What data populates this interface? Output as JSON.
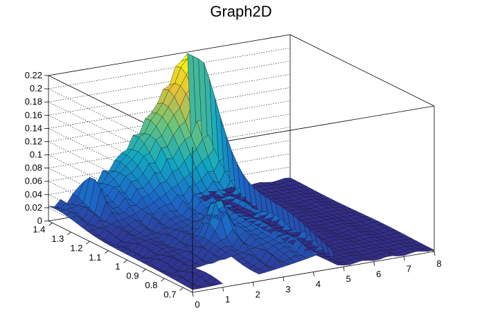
{
  "chart_data": {
    "type": "surface",
    "title": "Graph2D",
    "xlabel": "",
    "ylabel": "",
    "zlabel": "",
    "x_range": [
      0,
      8
    ],
    "y_range": [
      0.65,
      1.42
    ],
    "z_range": [
      0,
      0.22
    ],
    "x_ticks": [
      "0",
      "1",
      "2",
      "3",
      "4",
      "5",
      "6",
      "7",
      "8"
    ],
    "y_ticks": [
      "0.7",
      "0.8",
      "0.9",
      "1",
      "1.1",
      "1.2",
      "1.3",
      "1.4"
    ],
    "z_ticks": [
      "0",
      "0.02",
      "0.04",
      "0.06",
      "0.08",
      "0.1",
      "0.12",
      "0.14",
      "0.16",
      "0.18",
      "0.2",
      "0.22"
    ],
    "grid": true,
    "colormap": "viridis-like (dark blue to yellow)",
    "palette": [
      "#352a87",
      "#1c67c8",
      "#12a8c2",
      "#6bc47c",
      "#e4c038",
      "#f9fb0e"
    ],
    "features": {
      "main_ridge_peak": {
        "x": 3.8,
        "y": 1.35,
        "z": 0.215
      },
      "secondary_peak": {
        "x": 2.7,
        "y": 0.95,
        "z": 0.1
      },
      "gap_region": {
        "x": [
          1.0,
          2.2
        ],
        "y": [
          0.65,
          0.78
        ]
      }
    }
  }
}
